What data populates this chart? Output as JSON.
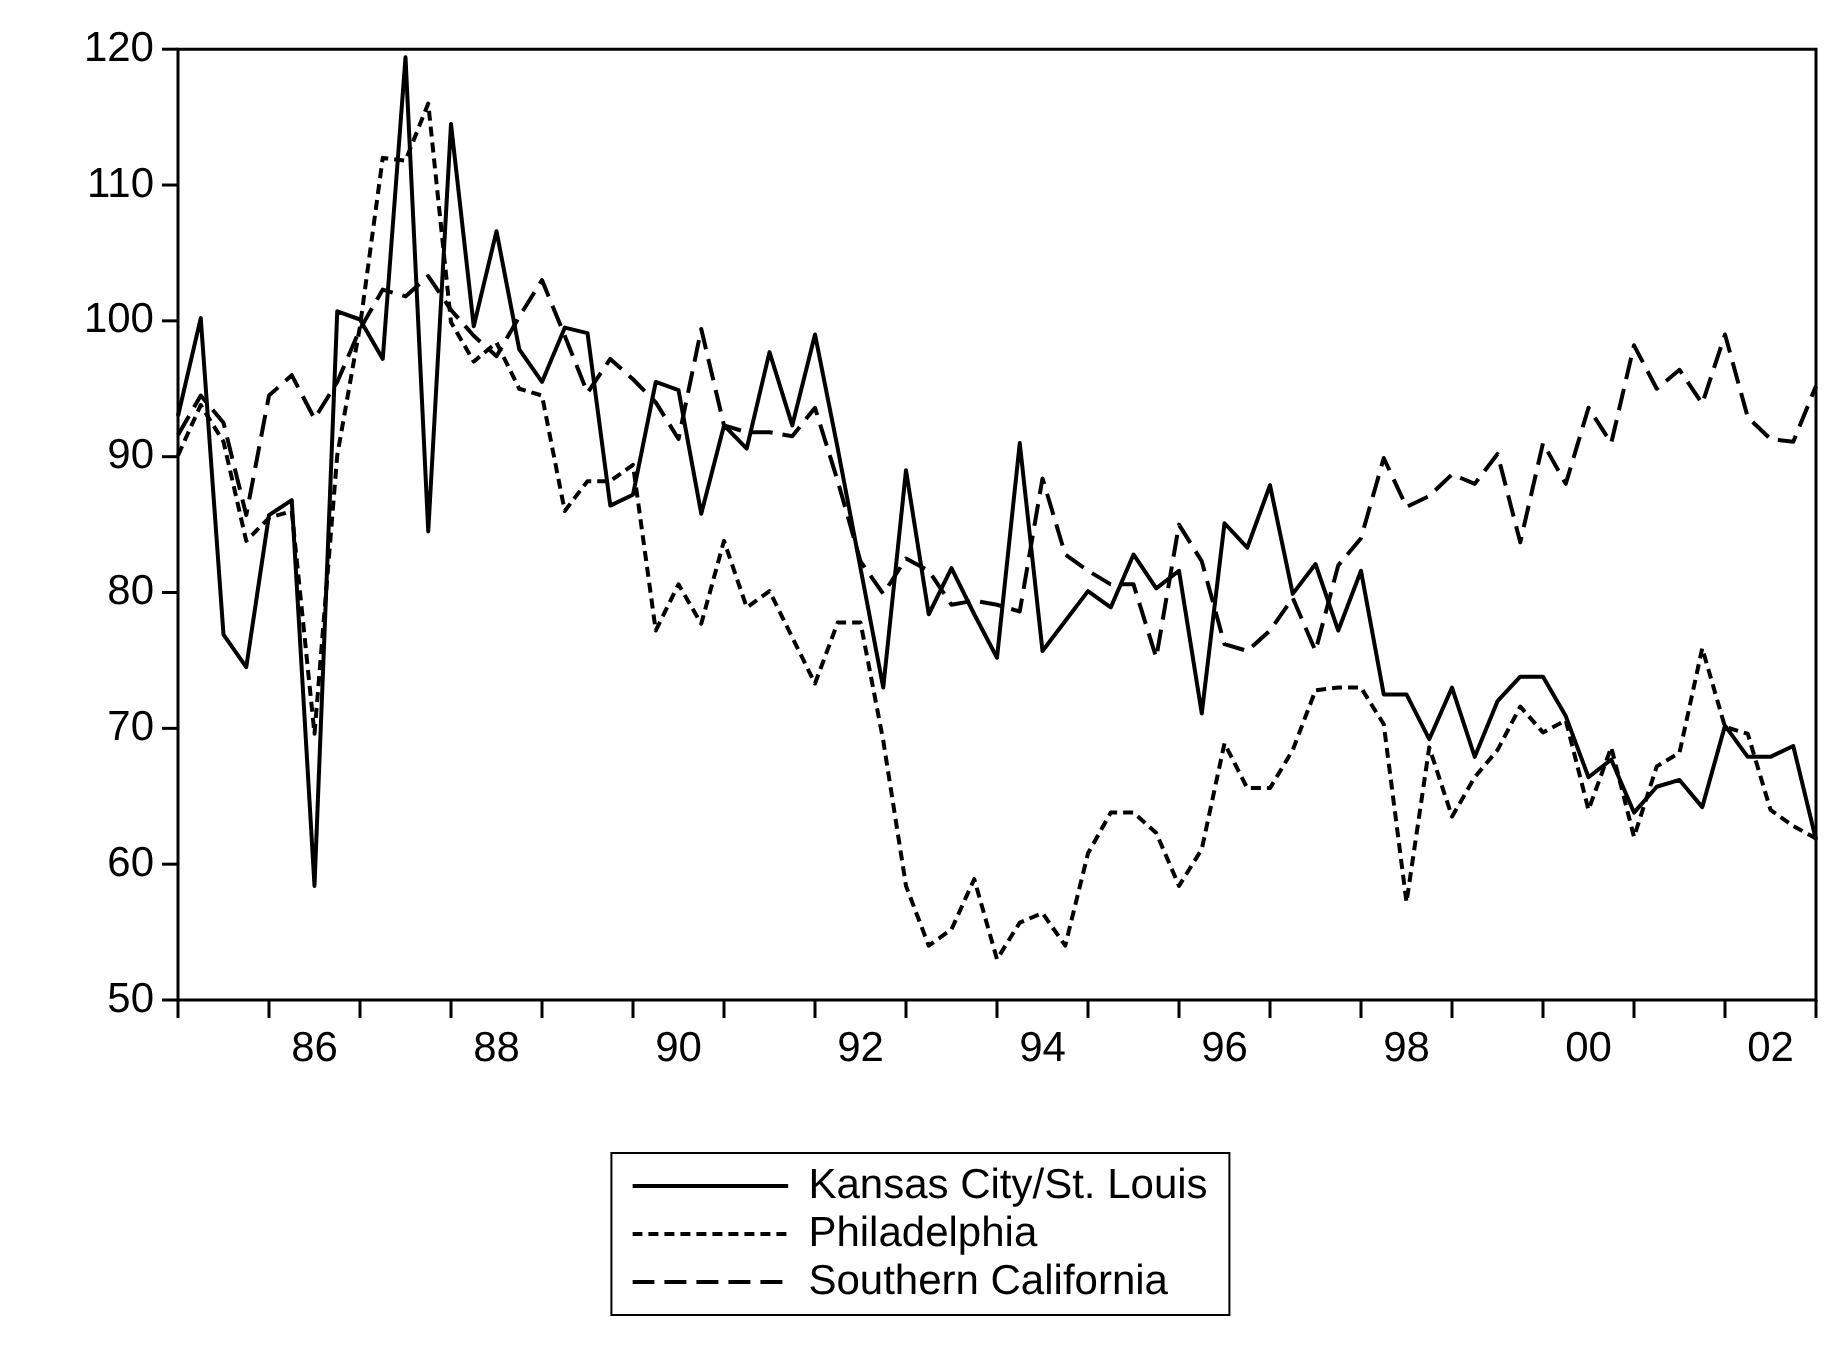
{
  "chart_data": {
    "type": "line",
    "categories": [
      null,
      null,
      null,
      null,
      null,
      null,
      "86",
      null,
      null,
      null,
      null,
      null,
      null,
      null,
      "88",
      null,
      null,
      null,
      null,
      null,
      null,
      null,
      "90",
      null,
      null,
      null,
      null,
      null,
      null,
      null,
      "92",
      null,
      null,
      null,
      null,
      null,
      null,
      null,
      "94",
      null,
      null,
      null,
      null,
      null,
      null,
      null,
      "96",
      null,
      null,
      null,
      null,
      null,
      null,
      null,
      "98",
      null,
      null,
      null,
      null,
      null,
      null,
      null,
      "00",
      null,
      null,
      null,
      null,
      null,
      null,
      null,
      "02",
      null,
      null
    ],
    "series": [
      {
        "name": "Kansas City/St. Louis",
        "color": "#000000",
        "line_style": "solid",
        "values": [
          93.0,
          100.2,
          76.9,
          74.5,
          85.7,
          86.8,
          58.4,
          100.7,
          100.1,
          97.2,
          119.4,
          84.5,
          114.5,
          99.6,
          106.6,
          97.9,
          95.5,
          99.5,
          99.1,
          86.4,
          87.2,
          95.5,
          94.9,
          85.8,
          92.3,
          90.6,
          97.7,
          92.3,
          99.0,
          90.6,
          81.8,
          73.0,
          89.0,
          78.4,
          81.8,
          78.4,
          75.2,
          91.0,
          75.7,
          77.9,
          80.1,
          78.9,
          82.8,
          80.3,
          81.6,
          71.1,
          85.1,
          83.3,
          87.9,
          79.9,
          82.1,
          77.2,
          81.6,
          72.5,
          72.5,
          69.2,
          73.0,
          67.9,
          72.0,
          73.8,
          73.8,
          70.9,
          66.4,
          67.7,
          63.8,
          65.7,
          66.2,
          64.2,
          70.2,
          67.9,
          67.9,
          68.7,
          61.8
        ]
      },
      {
        "name": "Philadelphia",
        "color": "#000000",
        "line_style": "dotted",
        "values": [
          90.1,
          93.8,
          91.1,
          83.8,
          85.5,
          86.0,
          69.6,
          90.1,
          99.6,
          112.0,
          111.8,
          116.0,
          99.9,
          97.0,
          98.4,
          95.0,
          94.5,
          86.0,
          88.2,
          88.2,
          89.4,
          77.2,
          80.6,
          77.7,
          83.8,
          78.9,
          80.1,
          76.7,
          73.3,
          77.8,
          77.8,
          69.1,
          58.4,
          54.0,
          55.2,
          58.9,
          53.0,
          55.7,
          56.4,
          54.0,
          60.8,
          63.8,
          63.8,
          62.3,
          58.4,
          61.1,
          68.9,
          65.6,
          65.6,
          68.4,
          72.8,
          73.0,
          73.0,
          70.3,
          57.2,
          68.6,
          63.5,
          66.4,
          68.4,
          71.6,
          69.7,
          70.6,
          64.0,
          68.6,
          62.0,
          67.2,
          68.2,
          75.9,
          70.1,
          69.6,
          64.0,
          62.8,
          61.9
        ]
      },
      {
        "name": "Southern California",
        "color": "#000000",
        "line_style": "dashed",
        "values": [
          91.6,
          94.5,
          92.5,
          85.7,
          94.5,
          96.0,
          92.8,
          95.5,
          99.4,
          102.3,
          101.8,
          103.3,
          100.8,
          98.9,
          97.4,
          100.3,
          103.0,
          98.9,
          94.7,
          97.2,
          95.7,
          94.0,
          91.3,
          99.4,
          92.3,
          91.8,
          91.8,
          91.5,
          93.6,
          88.2,
          82.3,
          79.9,
          82.5,
          81.6,
          79.1,
          79.4,
          79.1,
          78.6,
          88.4,
          82.8,
          81.6,
          80.6,
          80.6,
          75.2,
          85.0,
          82.3,
          76.2,
          75.7,
          77.2,
          79.6,
          75.7,
          82.0,
          84.0,
          89.9,
          86.3,
          87.1,
          88.7,
          88.0,
          90.2,
          83.7,
          91.0,
          88.0,
          93.6,
          91.0,
          98.2,
          95.0,
          96.4,
          93.9,
          99.0,
          92.9,
          91.3,
          91.1,
          95.2
        ]
      }
    ],
    "ylim": [
      50,
      120
    ],
    "yticks": [
      50,
      60,
      70,
      80,
      90,
      100,
      110,
      120
    ],
    "grid": false,
    "legend": "bottom"
  }
}
